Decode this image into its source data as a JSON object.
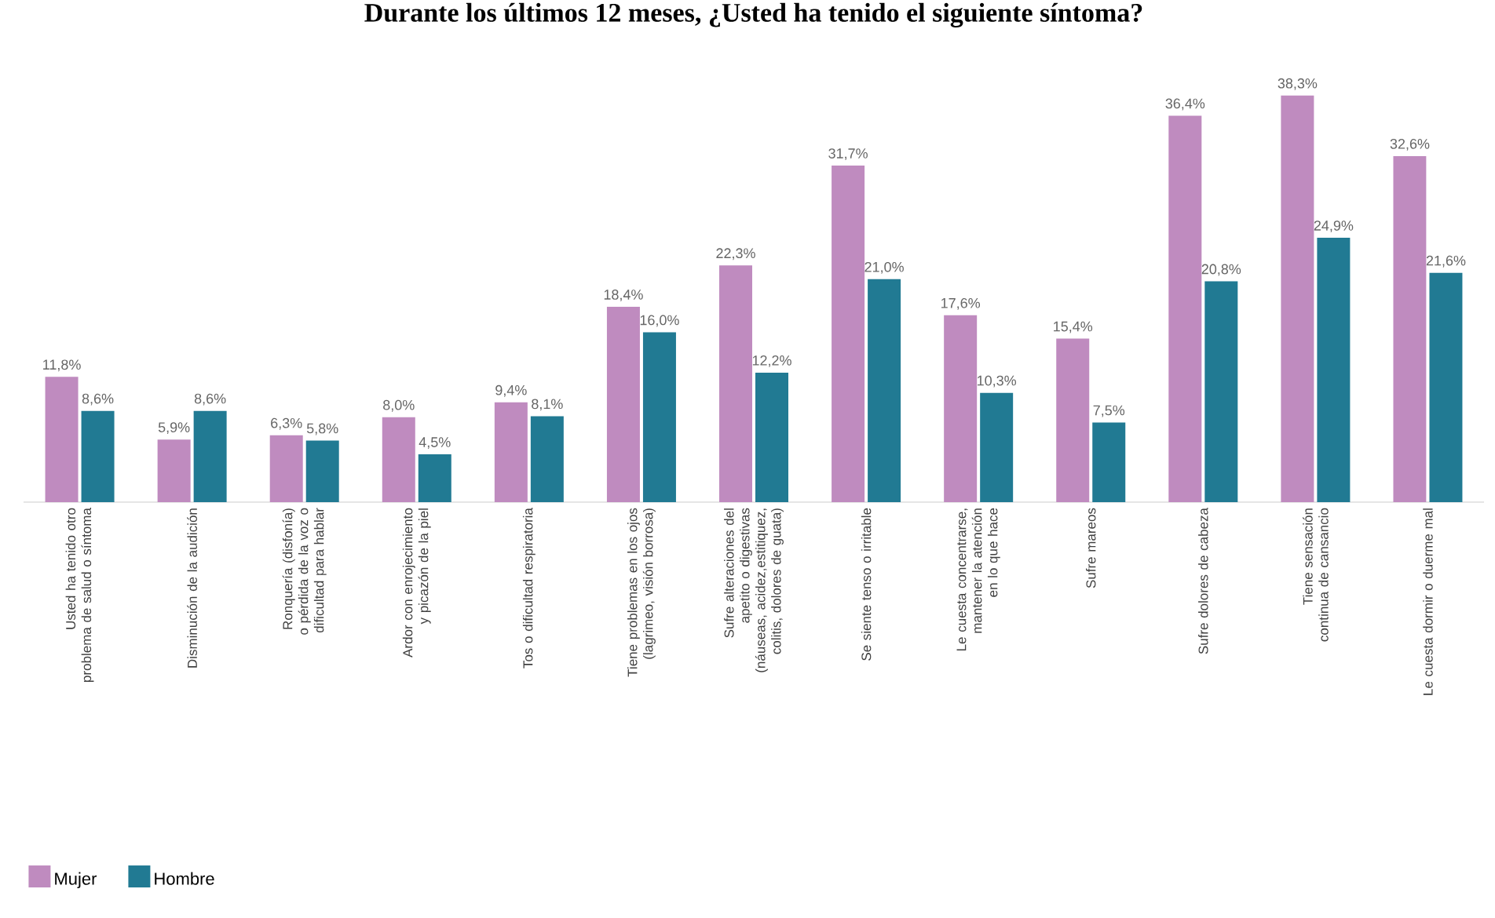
{
  "chart_data": {
    "type": "bar",
    "title": "Durante los últimos 12 meses, ¿Usted ha tenido el siguiente síntoma?",
    "categories": [
      "Usted ha tenido otro problema de salud o síntoma",
      "Disminución de la audición",
      "Ronquería (disfonía) o pérdida de la voz o dificultad para hablar",
      "Ardor con enrojecimiento y picazón de la piel",
      "Tos o dificultad respiratoria",
      "Tiene problemas en los ojos (lagrimeo, visión borrosa)",
      "Sufre alteraciones del apetito o digestivas (náuseas, acidez,estitiquez, colitis, dolores de guata)",
      "Se siente tenso o irritable",
      "Le cuesta concentrarse, mantener la atención en lo que hace",
      "Sufre mareos",
      "Sufre dolores de cabeza",
      "Tiene sensación continua de cansancio",
      "Le cuesta dormir o duerme mal"
    ],
    "series": [
      {
        "name": "Mujer",
        "color": "#bf8bbf",
        "values": [
          11.8,
          5.9,
          6.3,
          8.0,
          9.4,
          18.4,
          22.3,
          31.7,
          17.6,
          15.4,
          36.4,
          38.3,
          32.6
        ],
        "value_labels": [
          "11,8%",
          "5,9%",
          "6,3%",
          "8,0%",
          "9,4%",
          "18,4%",
          "22,3%",
          "31,7%",
          "17,6%",
          "15,4%",
          "36,4%",
          "38,3%",
          "32,6%"
        ]
      },
      {
        "name": "Hombre",
        "color": "#217a93",
        "values": [
          8.6,
          8.6,
          5.8,
          4.5,
          8.1,
          16.0,
          12.2,
          21.0,
          10.3,
          7.5,
          20.8,
          24.9,
          21.6
        ],
        "value_labels": [
          "8,6%",
          "8,6%",
          "5,8%",
          "4,5%",
          "8,1%",
          "16,0%",
          "12,2%",
          "21,0%",
          "10,3%",
          "7,5%",
          "20,8%",
          "24,9%",
          "21,6%"
        ]
      }
    ],
    "legend": "bottom left"
  }
}
